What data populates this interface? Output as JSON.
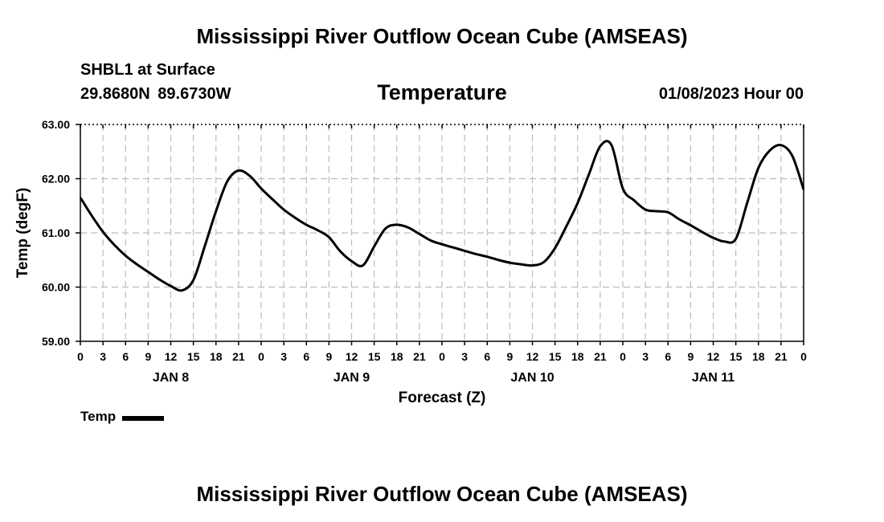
{
  "header": {
    "main_title": "Mississippi River Outflow Ocean Cube (AMSEAS)",
    "station": "SHBL1 at Surface",
    "coords": "29.8680N  89.6730W",
    "chart_title": "Temperature",
    "datetime": "01/08/2023 Hour 00"
  },
  "footer": {
    "title": "Mississippi River Outflow Ocean Cube (AMSEAS)"
  },
  "legend": {
    "label": "Temp",
    "color": "#000000"
  },
  "chart_data": {
    "type": "line",
    "title": "Temperature",
    "xlabel": "Forecast (Z)",
    "ylabel": "Temp (degF)",
    "xlim": [
      0,
      96
    ],
    "ylim": [
      59,
      63
    ],
    "grid": true,
    "yticks": [
      "59.00",
      "60.00",
      "61.00",
      "62.00",
      "63.00"
    ],
    "ytick_values": [
      59,
      60,
      61,
      62,
      63
    ],
    "xtick_labels": [
      "0",
      "3",
      "6",
      "9",
      "12",
      "15",
      "18",
      "21",
      "0",
      "3",
      "6",
      "9",
      "12",
      "15",
      "18",
      "21",
      "0",
      "3",
      "6",
      "9",
      "12",
      "15",
      "18",
      "21",
      "0",
      "3",
      "6",
      "9",
      "12",
      "15",
      "18",
      "21",
      "0"
    ],
    "day_labels": [
      {
        "label": "JAN 8",
        "hour": 12
      },
      {
        "label": "JAN 9",
        "hour": 36
      },
      {
        "label": "JAN 10",
        "hour": 60
      },
      {
        "label": "JAN 11",
        "hour": 84
      }
    ],
    "series": [
      {
        "name": "Temp",
        "x": [
          0,
          1.5,
          3,
          4.5,
          6,
          7.5,
          9,
          10.5,
          12,
          13.5,
          15,
          16.5,
          18,
          19.5,
          21,
          22.5,
          24,
          25.5,
          27,
          28.5,
          30,
          31.5,
          33,
          34.5,
          36,
          37.5,
          39,
          40.5,
          42,
          43.5,
          45,
          46.5,
          48,
          49.5,
          51,
          52.5,
          54,
          55.5,
          57,
          58.5,
          60,
          61.5,
          63,
          64.5,
          66,
          67.5,
          69,
          70.5,
          72,
          73.5,
          75,
          76.5,
          78,
          79.5,
          81,
          82.5,
          84,
          85.5,
          87,
          88.5,
          90,
          91.5,
          93,
          94.5,
          96
        ],
        "values": [
          61.65,
          61.32,
          61.02,
          60.78,
          60.58,
          60.42,
          60.28,
          60.14,
          60.02,
          59.94,
          60.13,
          60.75,
          61.4,
          61.95,
          62.15,
          62.05,
          61.82,
          61.62,
          61.43,
          61.28,
          61.15,
          61.05,
          60.92,
          60.66,
          60.48,
          60.4,
          60.75,
          61.08,
          61.15,
          61.1,
          60.98,
          60.86,
          60.79,
          60.73,
          60.67,
          60.61,
          60.56,
          60.5,
          60.45,
          60.42,
          60.4,
          60.46,
          60.72,
          61.12,
          61.55,
          62.08,
          62.6,
          62.62,
          61.82,
          61.6,
          61.43,
          61.4,
          61.38,
          61.25,
          61.14,
          61.02,
          60.91,
          60.84,
          60.89,
          61.55,
          62.2,
          62.52,
          62.62,
          62.42,
          61.8
        ]
      }
    ]
  }
}
